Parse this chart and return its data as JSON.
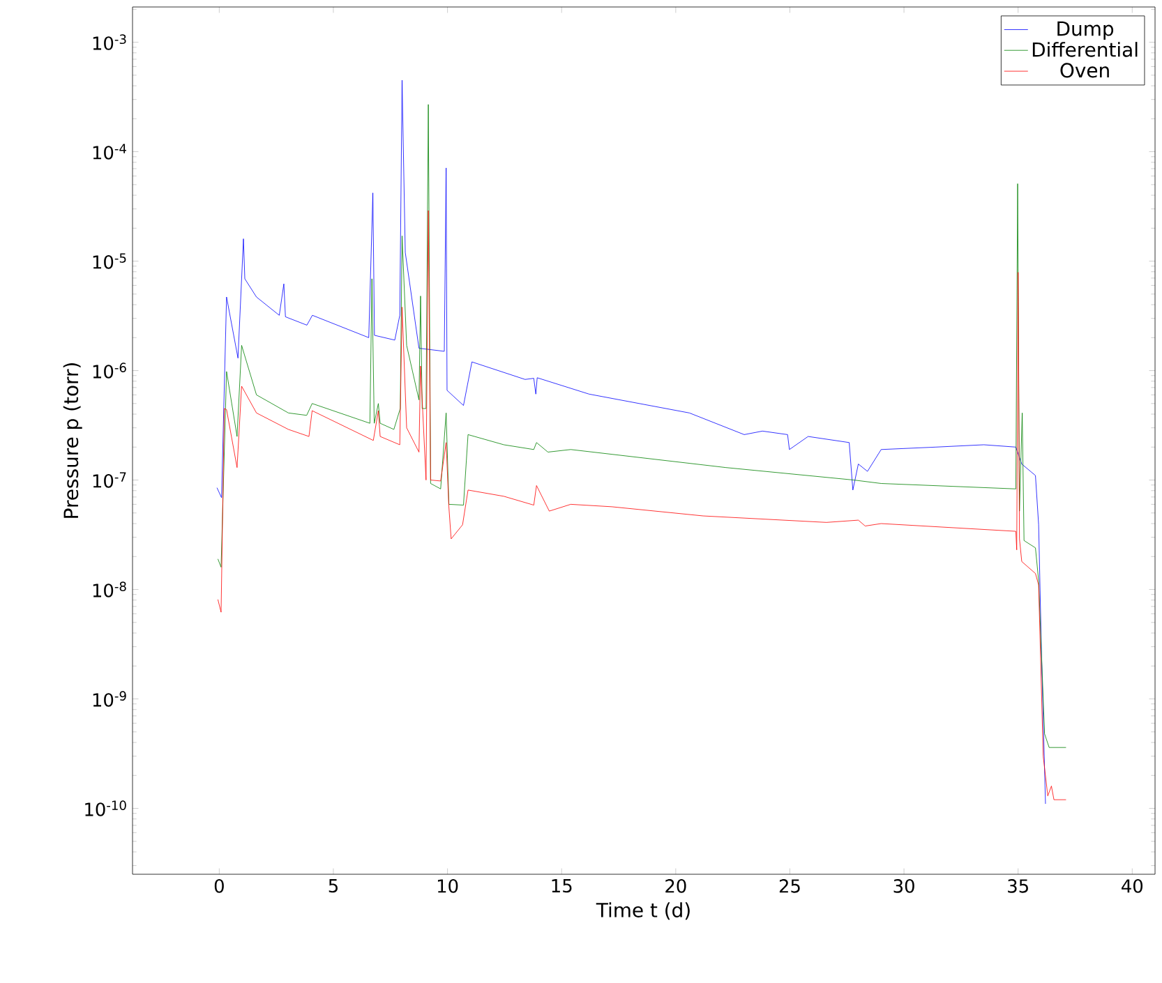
{
  "chart_data": {
    "type": "line",
    "xlabel": "Time t (d)",
    "ylabel": "Pressure p (torr)",
    "log": "y",
    "legend": "top right",
    "marker": "none",
    "line_style": "solid",
    "xlim": [
      -3.8,
      41
    ],
    "ylim": [
      2.5e-11,
      0.0021
    ],
    "xticks": [
      0,
      5,
      10,
      15,
      20,
      25,
      30,
      35,
      40
    ],
    "yticks": [
      {
        "value": 1e-10,
        "label": "10$^{-10}$"
      },
      {
        "value": 1e-09,
        "label": "10$^{-9}$"
      },
      {
        "value": 1e-08,
        "label": "10$^{-8}$"
      },
      {
        "value": 1e-07,
        "label": "10$^{-7}$"
      },
      {
        "value": 1e-06,
        "label": "10$^{-6}$"
      },
      {
        "value": 1e-05,
        "label": "10$^{-5}$"
      },
      {
        "value": 0.0001,
        "label": "10$^{-4}$"
      },
      {
        "value": 0.001,
        "label": "10$^{-3}$"
      }
    ],
    "series": [
      {
        "name": "Dump",
        "color": "#0000ff",
        "x": [
          -0.1,
          0.1,
          0.32,
          0.82,
          1.06,
          1.12,
          1.63,
          2.63,
          2.83,
          2.9,
          3.84,
          4.08,
          6.55,
          6.73,
          6.8,
          7.69,
          7.91,
          8.01,
          8.15,
          8.75,
          9.86,
          9.94,
          9.98,
          10.7,
          11.07,
          13.4,
          13.78,
          13.87,
          13.93,
          16.2,
          20.6,
          23.0,
          23.8,
          24.9,
          24.98,
          25.8,
          27.6,
          27.76,
          28.0,
          28.4,
          29.0,
          31.4,
          33.5,
          34.9,
          35.16,
          35.76,
          35.9,
          36.02,
          36.2
        ],
        "values": [
          8.5e-08,
          6.9e-08,
          4.7e-06,
          1.3e-06,
          1.6e-05,
          6.9e-06,
          4.7e-06,
          3.2e-06,
          6.2e-06,
          3.1e-06,
          2.6e-06,
          3.2e-06,
          2e-06,
          4.2e-05,
          2.1e-06,
          1.9e-06,
          3.2e-06,
          0.00045,
          1.2e-05,
          1.6e-06,
          1.5e-06,
          7.1e-05,
          6.6e-07,
          4.8e-07,
          1.2e-06,
          8.3e-07,
          8.5e-07,
          6.1e-07,
          8.6e-07,
          6.1e-07,
          4.1e-07,
          2.6e-07,
          2.8e-07,
          2.6e-07,
          1.9e-07,
          2.5e-07,
          2.2e-07,
          8.1e-08,
          1.4e-07,
          1.2e-07,
          1.9e-07,
          2e-07,
          2.1e-07,
          2e-07,
          1.4e-07,
          1.1e-07,
          3.9e-08,
          2.8e-09,
          1.1e-10
        ]
      },
      {
        "name": "Differential",
        "color": "#008000",
        "x": [
          -0.06,
          0.08,
          0.32,
          0.78,
          0.98,
          1.63,
          3.03,
          3.83,
          4.07,
          6.6,
          6.69,
          6.79,
          6.97,
          7.05,
          7.65,
          7.93,
          8.01,
          8.21,
          8.75,
          8.82,
          8.89,
          9.06,
          9.16,
          9.26,
          9.7,
          9.94,
          10.06,
          10.7,
          10.9,
          12.47,
          13.78,
          13.9,
          14.4,
          15.4,
          22.2,
          27.8,
          29.0,
          34.9,
          34.98,
          35.06,
          35.18,
          35.26,
          35.76,
          35.9,
          36.16,
          36.36,
          37.1
        ],
        "values": [
          1.9e-08,
          1.6e-08,
          9.8e-07,
          2.5e-07,
          1.7e-06,
          6e-07,
          4.1e-07,
          3.9e-07,
          5e-07,
          3.3e-07,
          6.9e-06,
          3.3e-07,
          5e-07,
          3.3e-07,
          2.9e-07,
          4.5e-07,
          1.7e-05,
          1.7e-06,
          5.4e-07,
          4.8e-06,
          4.5e-07,
          4.5e-07,
          0.00027,
          9.3e-08,
          8.3e-08,
          4.1e-07,
          6e-08,
          5.9e-08,
          2.6e-07,
          2.1e-07,
          1.9e-07,
          2.2e-07,
          1.8e-07,
          1.9e-07,
          1.3e-07,
          1e-07,
          9.3e-08,
          8.3e-08,
          5.1e-05,
          5.2e-08,
          4.1e-07,
          2.8e-08,
          2.4e-08,
          1.2e-08,
          4.8e-10,
          3.6e-10,
          3.6e-10
        ]
      },
      {
        "name": "Oven",
        "color": "#ff0000",
        "x": [
          -0.06,
          0.08,
          0.22,
          0.32,
          0.78,
          0.98,
          1.63,
          3.03,
          3.93,
          4.07,
          6.75,
          6.97,
          7.05,
          7.91,
          8.01,
          8.21,
          8.75,
          8.82,
          9.06,
          9.16,
          9.26,
          9.7,
          9.94,
          10.06,
          10.16,
          10.66,
          10.9,
          12.47,
          13.78,
          13.9,
          14.46,
          15.4,
          17.2,
          21.2,
          26.6,
          28.0,
          28.3,
          29.0,
          34.9,
          34.94,
          35.0,
          35.06,
          35.16,
          35.76,
          35.9,
          36.1,
          36.3,
          36.46,
          36.57,
          37.1
        ],
        "values": [
          8.1e-09,
          6.2e-09,
          4.5e-07,
          4.4e-07,
          1.3e-07,
          7.2e-07,
          4.1e-07,
          2.9e-07,
          2.5e-07,
          4.3e-07,
          2.3e-07,
          4.3e-07,
          2.5e-07,
          2.1e-07,
          3.8e-06,
          3e-07,
          1.8e-07,
          1.1e-06,
          1e-07,
          2.9e-05,
          1e-07,
          9.8e-08,
          2.2e-07,
          5.7e-08,
          2.9e-08,
          3.9e-08,
          8.1e-08,
          7.1e-08,
          5.9e-08,
          8.9e-08,
          5.2e-08,
          6e-08,
          5.7e-08,
          4.7e-08,
          4.1e-08,
          4.3e-08,
          3.8e-08,
          4e-08,
          3.4e-08,
          2.3e-08,
          7.9e-06,
          2.9e-08,
          1.8e-08,
          1.4e-08,
          1.1e-08,
          3e-10,
          1.3e-10,
          1.6e-10,
          1.2e-10,
          1.2e-10
        ]
      }
    ]
  }
}
